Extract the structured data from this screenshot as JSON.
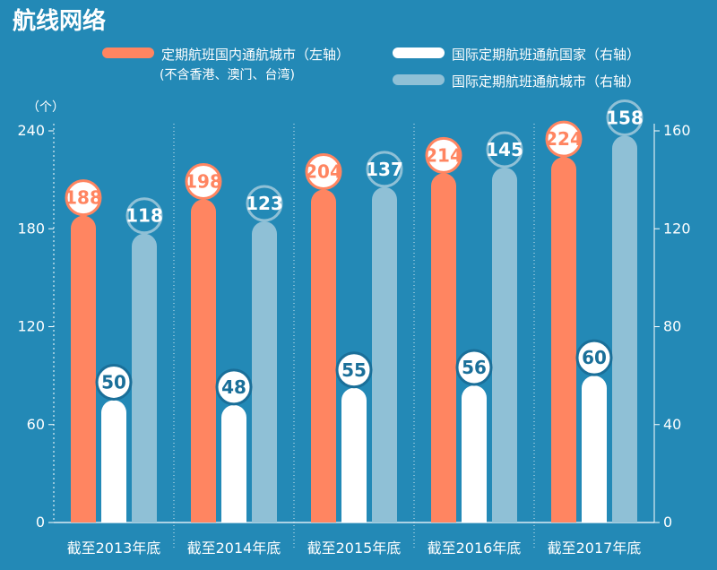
{
  "chart_data": {
    "type": "bar",
    "title": "航线网络",
    "categories": [
      "截至2013年底",
      "截至2014年底",
      "截至2015年底",
      "截至2016年底",
      "截至2017年底"
    ],
    "series": [
      {
        "name": "定期航班国内通航城市（左轴）",
        "name_note": "(不含香港、澳门、台湾)",
        "axis": "left",
        "values": [
          188,
          198,
          204,
          214,
          224
        ],
        "color": "#ff8561"
      },
      {
        "name": "国际定期航班通航国家（右轴）",
        "axis": "right",
        "values": [
          50,
          48,
          55,
          56,
          60
        ],
        "color": "#ffffff"
      },
      {
        "name": "国际定期航班通航城市（右轴）",
        "axis": "right",
        "values": [
          118,
          123,
          137,
          145,
          158
        ],
        "color": "#8fc0d6"
      }
    ],
    "left_axis": {
      "label": "（个）",
      "ylim": [
        0,
        240
      ],
      "ticks": [
        0,
        60,
        120,
        180,
        240
      ]
    },
    "right_axis": {
      "ylim": [
        0,
        160
      ],
      "ticks": [
        0,
        40,
        80,
        120,
        160
      ]
    },
    "legend_position": "top",
    "grid": "vertical dotted separators"
  },
  "colors": {
    "background": "#2389b6",
    "text": "#ffffff",
    "value_text_white_bar": "#1a6f99"
  }
}
